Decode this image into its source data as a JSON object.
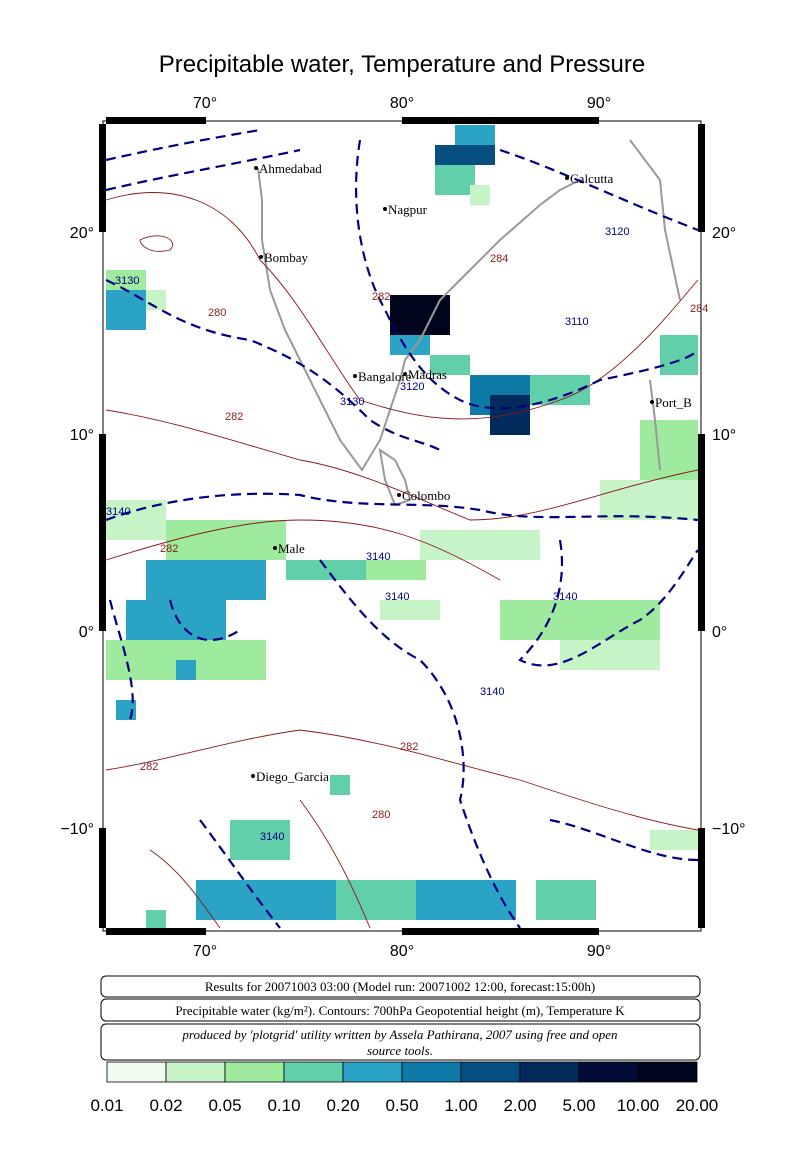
{
  "title": "Precipitable water, Temperature and Pressure",
  "lon_labels": [
    "70°",
    "80°",
    "90°"
  ],
  "lat_labels": [
    "20°",
    "10°",
    "0°",
    "−10°"
  ],
  "cities": [
    "Ahmedabad",
    "Nagpur",
    "Calcutta",
    "Bombay",
    "Bangalore",
    "Madras",
    "Port_B",
    "Colombo",
    "Male",
    "Diego_Garcia"
  ],
  "contour_labels": [
    "3130",
    "280",
    "282",
    "284",
    "3110",
    "3120",
    "3130",
    "3120",
    "284",
    "282",
    "3140",
    "282",
    "3140",
    "3140",
    "3140",
    "3140",
    "282",
    "282",
    "280",
    "3140"
  ],
  "info": {
    "line1": "Results for 20071003 03:00 (Model run: 20071002 12:00, forecast:15:00h)",
    "line2": "Precipitable water (kg/m²).  Contours: 700hPa Geopotential height (m), Temperature K",
    "line3a": "produced by 'plotgrid' utility written by Assela Pathirana, 2007 using free and open",
    "line3b": "source tools."
  },
  "legend": {
    "colors": [
      "#effbef",
      "#c6f4c6",
      "#9eea9e",
      "#62cfab",
      "#2aa3c4",
      "#0e7aa8",
      "#064f80",
      "#022a5c",
      "#010b36",
      "#00041c"
    ],
    "labels": [
      "0.01",
      "0.02",
      "0.05",
      "0.10",
      "0.20",
      "0.50",
      "1.00",
      "2.00",
      "5.00",
      "10.00",
      "20.00"
    ]
  }
}
